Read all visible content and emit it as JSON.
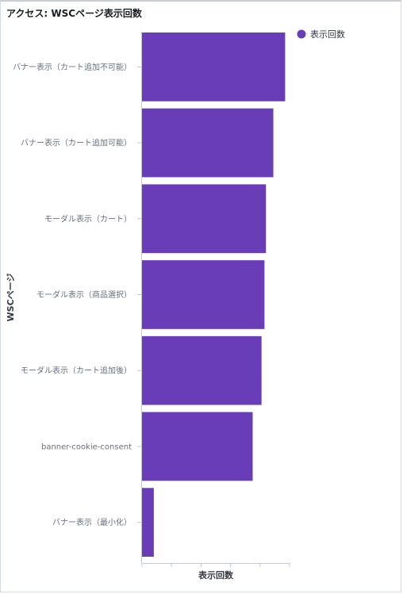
{
  "panel": {
    "title": "アクセス: WSCページ表示回数"
  },
  "legend": {
    "label": "表示回数",
    "placement": "top-right"
  },
  "colors": {
    "bar": "#6a3db8",
    "axis": "#c5c9d2"
  },
  "chart_data": {
    "type": "bar",
    "orientation": "horizontal",
    "title": "",
    "xlabel": "表示回数",
    "ylabel": "WSCページ",
    "categories": [
      "バナー表示（カート追加不可能）",
      "バナー表示（カート追加可能）",
      "モーダル表示（カート）",
      "モーダル表示（商品選択）",
      "モーダル表示（カート追加後）",
      "banner-cookie-consent",
      "バナー表示（最小化）"
    ],
    "series": [
      {
        "name": "表示回数",
        "values": [
          97,
          89,
          84,
          83,
          81,
          75,
          8
        ]
      }
    ],
    "xlim": [
      0,
      100
    ],
    "grid": false,
    "tick_labels_visible": false
  }
}
